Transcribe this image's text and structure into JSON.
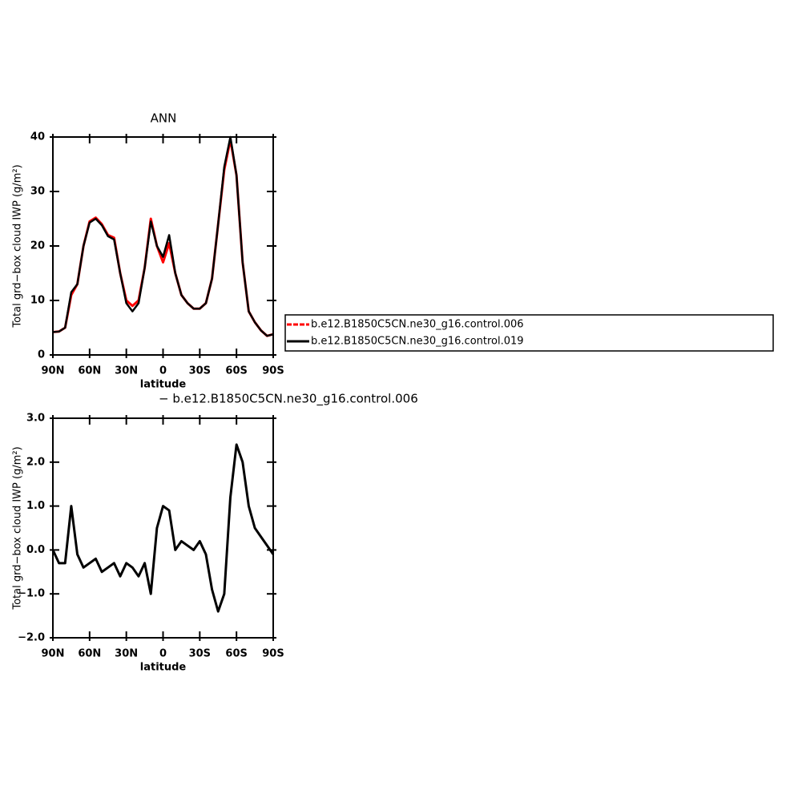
{
  "chart_data": [
    {
      "type": "line",
      "title": "ANN",
      "xlabel": "latitude",
      "ylabel": "Total grd−box cloud IWP (g/m²)",
      "x": [
        90,
        85,
        80,
        75,
        70,
        65,
        60,
        55,
        50,
        45,
        40,
        35,
        30,
        25,
        20,
        15,
        10,
        5,
        0,
        -5,
        -10,
        -15,
        -20,
        -25,
        -30,
        -35,
        -40,
        -45,
        -50,
        -55,
        -60,
        -65,
        -70,
        -75,
        -80,
        -85,
        -90
      ],
      "series": [
        {
          "name": "b.e12.B1850C5CN.ne30_g16.control.006",
          "color": "#ff0000",
          "values": [
            4.2,
            4.3,
            5,
            11,
            13,
            20,
            24.5,
            25.2,
            24,
            22,
            21.5,
            15,
            10,
            9,
            10,
            16,
            25,
            20,
            17,
            20.5,
            15,
            11,
            9.5,
            8.5,
            8.5,
            9.5,
            14,
            24,
            34,
            39.5,
            33,
            17,
            8,
            6,
            4.5,
            3.5,
            3.8
          ]
        },
        {
          "name": "b.e12.B1850C5CN.ne30_g16.control.019",
          "color": "#000000",
          "values": [
            4.2,
            4.3,
            5,
            11.5,
            13,
            20,
            24.3,
            25,
            23.8,
            21.8,
            21.2,
            15,
            9.5,
            8,
            9.5,
            16,
            24.5,
            20,
            18,
            22,
            15,
            11,
            9.5,
            8.5,
            8.5,
            9.5,
            14,
            24,
            34.5,
            40,
            33,
            17,
            8,
            6,
            4.5,
            3.5,
            3.8
          ]
        }
      ],
      "xlim": [
        90,
        -90
      ],
      "xticks": [
        {
          "value": 90,
          "label": "90N"
        },
        {
          "value": 60,
          "label": "60N"
        },
        {
          "value": 30,
          "label": "30N"
        },
        0,
        {
          "value": -30,
          "label": "30S"
        },
        {
          "value": -60,
          "label": "60S"
        },
        {
          "value": -90,
          "label": "90S"
        }
      ],
      "ylim": [
        0,
        40
      ],
      "yticks": [
        0,
        10,
        20,
        30,
        40
      ]
    },
    {
      "type": "line",
      "title": "− b.e12.B1850C5CN.ne30_g16.control.006",
      "xlabel": "latitude",
      "ylabel": "Total grd−box cloud IWP (g/m²)",
      "x": [
        90,
        85,
        80,
        75,
        70,
        65,
        60,
        55,
        50,
        45,
        40,
        35,
        30,
        25,
        20,
        15,
        10,
        5,
        0,
        -5,
        -10,
        -15,
        -20,
        -25,
        -30,
        -35,
        -40,
        -45,
        -50,
        -55,
        -60,
        -65,
        -70,
        -75,
        -80,
        -85,
        -90
      ],
      "color": "#000000",
      "values": [
        0,
        -0.3,
        -0.3,
        1.0,
        -0.1,
        -0.4,
        -0.3,
        -0.2,
        -0.5,
        -0.4,
        -0.3,
        -0.6,
        -0.3,
        -0.4,
        -0.6,
        -0.3,
        -1.0,
        0.5,
        1.0,
        0.9,
        0.0,
        0.2,
        0.1,
        0.0,
        0.2,
        -0.1,
        -0.9,
        -1.4,
        -1.0,
        1.2,
        2.4,
        2.0,
        1.0,
        0.5,
        0.3,
        0.1,
        -0.1
      ],
      "xlim": [
        90,
        -90
      ],
      "xticks": [
        {
          "value": 90,
          "label": "90N"
        },
        {
          "value": 60,
          "label": "60N"
        },
        {
          "value": 30,
          "label": "30N"
        },
        0,
        {
          "value": -30,
          "label": "30S"
        },
        {
          "value": -60,
          "label": "60S"
        },
        {
          "value": -90,
          "label": "90S"
        }
      ],
      "ylim": [
        -2,
        3
      ],
      "yticks": [
        {
          "value": -2,
          "label": "−2.0"
        },
        {
          "value": -1,
          "label": "−1.0"
        },
        {
          "value": 0,
          "label": "0.0"
        },
        {
          "value": 1,
          "label": "1.0"
        },
        {
          "value": 2,
          "label": "2.0"
        },
        {
          "value": 3,
          "label": "3.0"
        }
      ]
    }
  ]
}
